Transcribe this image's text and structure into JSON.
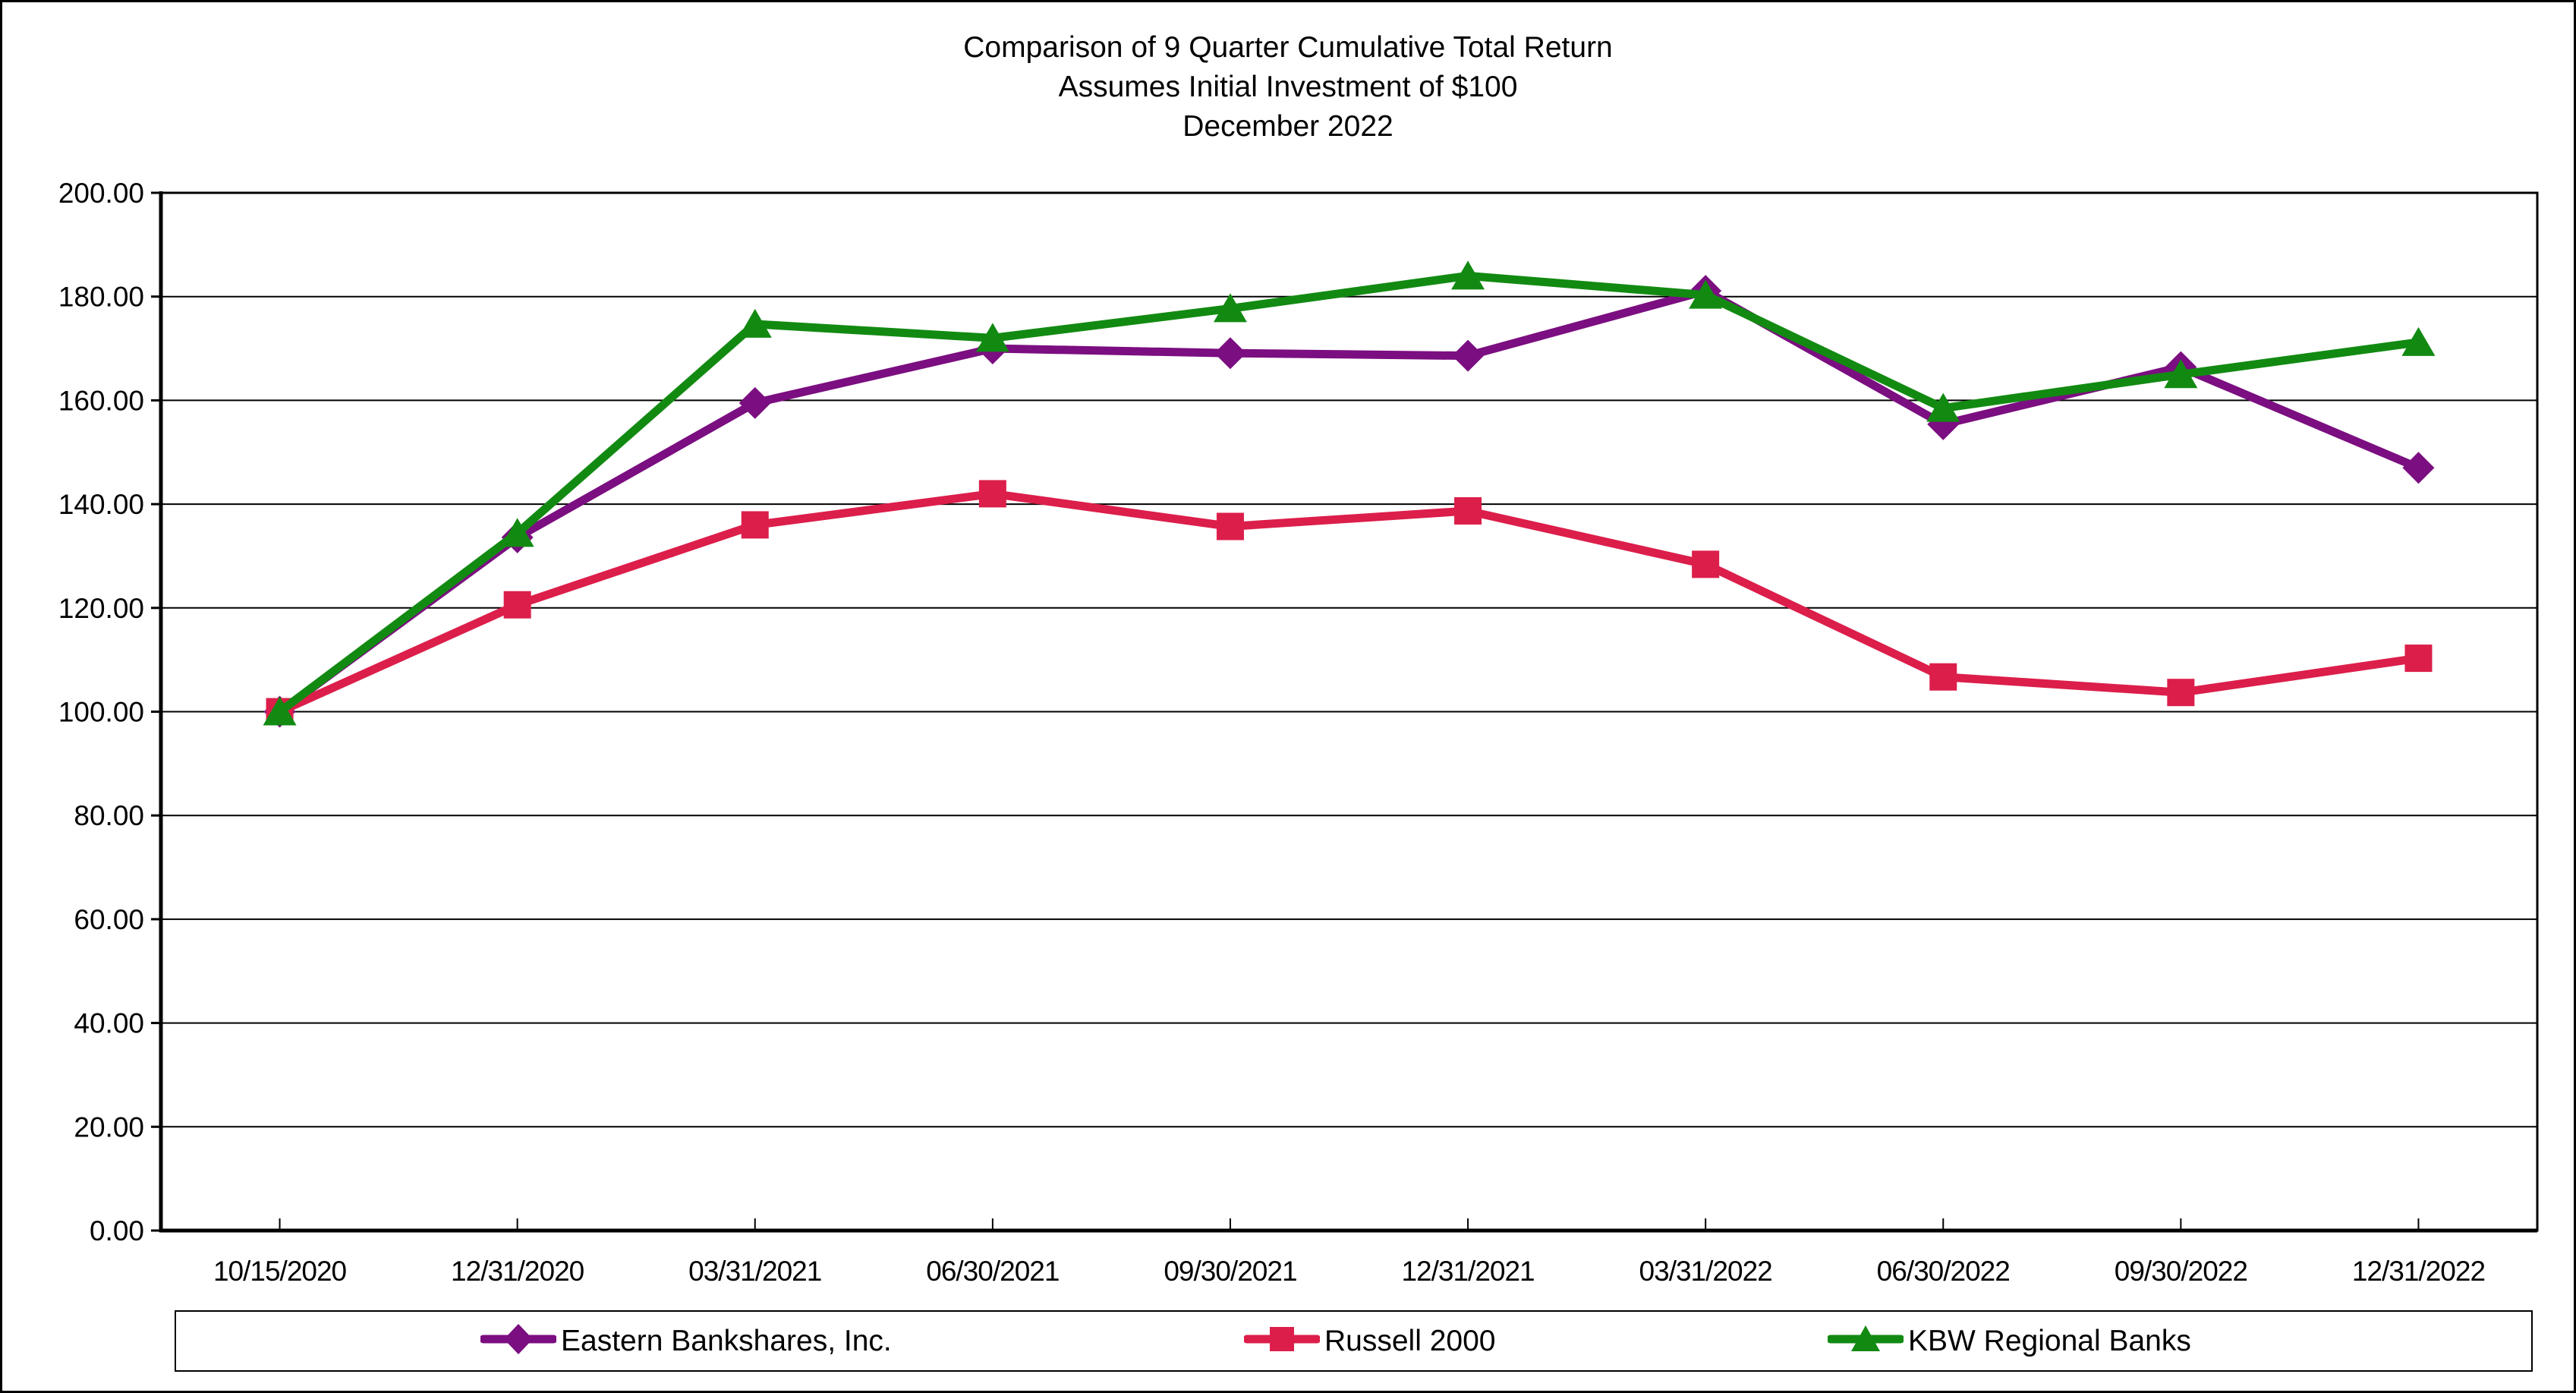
{
  "page": {
    "background": "#FFFFFF",
    "frame_color": "#000000"
  },
  "chart_data": {
    "type": "line",
    "title": "Comparison of 9 Quarter Cumulative Total Return",
    "subtitle_lines": [
      "Assumes Initial Investment of $100",
      "December 2022"
    ],
    "categories": [
      "10/15/2020",
      "12/31/2020",
      "03/31/2021",
      "06/30/2021",
      "09/30/2021",
      "12/31/2021",
      "03/31/2022",
      "06/30/2022",
      "09/30/2022",
      "12/31/2022"
    ],
    "series": [
      {
        "name": "Eastern Bankshares, Inc.",
        "color": "#7B0E80",
        "marker": "diamond",
        "values": [
          100.0,
          133.6,
          159.5,
          170.0,
          169.1,
          168.6,
          181.1,
          155.4,
          166.4,
          147.0
        ]
      },
      {
        "name": "Russell 2000",
        "color": "#DC1E4A",
        "marker": "square",
        "values": [
          100.0,
          120.6,
          136.0,
          142.0,
          135.7,
          138.7,
          128.4,
          106.7,
          103.7,
          110.3
        ]
      },
      {
        "name": "KBW Regional Banks",
        "color": "#128A12",
        "marker": "triangle",
        "values": [
          100.0,
          134.4,
          174.7,
          172.0,
          177.7,
          184.0,
          180.3,
          158.5,
          165.0,
          171.2
        ]
      }
    ],
    "ylim": [
      0,
      200
    ],
    "y_tick_step": 20,
    "y_tick_decimals": 2,
    "grid": true,
    "gridline_color": "#000000",
    "axis_color": "#000000",
    "legend_position": "bottom"
  }
}
